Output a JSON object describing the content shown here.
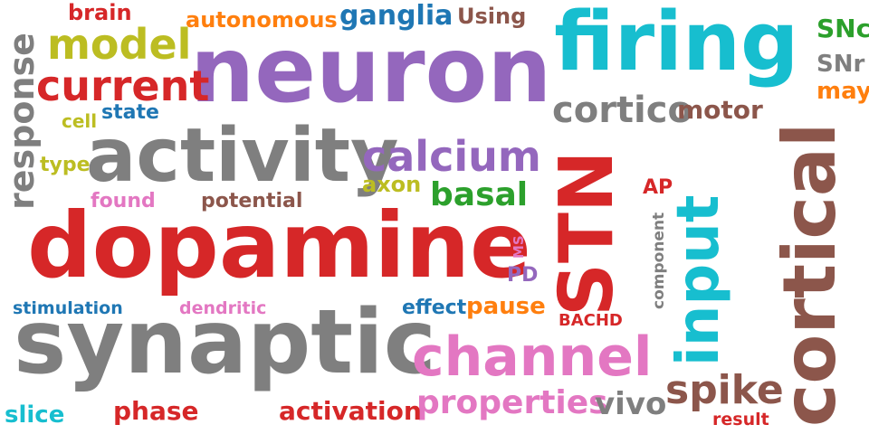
{
  "words": [
    {
      "text": "neuron",
      "color": "#9467bd"
    },
    {
      "text": "dopamine",
      "color": "#d62728"
    },
    {
      "text": "synaptic",
      "color": "#7f7f7f"
    },
    {
      "text": "activity",
      "color": "#7f7f7f"
    },
    {
      "text": "firing",
      "color": "#17becf"
    },
    {
      "text": "STN",
      "color": "#d62728"
    },
    {
      "text": "cortical",
      "color": "#8c564b"
    },
    {
      "text": "input",
      "color": "#17becf"
    },
    {
      "text": "channel",
      "color": "#e377c2"
    },
    {
      "text": "properties",
      "color": "#e377c2"
    },
    {
      "text": "calcium",
      "color": "#9467bd"
    },
    {
      "text": "cortico",
      "color": "#7f7f7f"
    },
    {
      "text": "current",
      "color": "#d62728"
    },
    {
      "text": "model",
      "color": "#bcbd22"
    },
    {
      "text": "response",
      "color": "#7f7f7f"
    },
    {
      "text": "ganglia",
      "color": "#1f77b4"
    },
    {
      "text": "autonomous",
      "color": "#ff7f0e"
    },
    {
      "text": "basal",
      "color": "#2ca02c"
    },
    {
      "text": "spike",
      "color": "#8c564b"
    },
    {
      "text": "brain",
      "color": "#d62728"
    },
    {
      "text": "Using",
      "color": "#8c564b"
    },
    {
      "text": "SNc",
      "color": "#2ca02c"
    },
    {
      "text": "SNr",
      "color": "#7f7f7f"
    },
    {
      "text": "may",
      "color": "#ff7f0e"
    },
    {
      "text": "motor",
      "color": "#8c564b"
    },
    {
      "text": "cell",
      "color": "#bcbd22"
    },
    {
      "text": "state",
      "color": "#1f77b4"
    },
    {
      "text": "type",
      "color": "#bcbd22"
    },
    {
      "text": "found",
      "color": "#e377c2"
    },
    {
      "text": "potential",
      "color": "#8c564b"
    },
    {
      "text": "axon",
      "color": "#bcbd22"
    },
    {
      "text": "AP",
      "color": "#d62728"
    },
    {
      "text": "component",
      "color": "#7f7f7f"
    },
    {
      "text": "MS",
      "color": "#e377c2"
    },
    {
      "text": "PD",
      "color": "#9467bd"
    },
    {
      "text": "stimulation",
      "color": "#1f77b4"
    },
    {
      "text": "dendritic",
      "color": "#e377c2"
    },
    {
      "text": "effect",
      "color": "#1f77b4"
    },
    {
      "text": "pause",
      "color": "#ff7f0e"
    },
    {
      "text": "BACHD",
      "color": "#d62728"
    },
    {
      "text": "vivo",
      "color": "#7f7f7f"
    },
    {
      "text": "slice",
      "color": "#17becf"
    },
    {
      "text": "phase",
      "color": "#d62728"
    },
    {
      "text": "activation",
      "color": "#d62728"
    },
    {
      "text": "result",
      "color": "#d62728"
    }
  ]
}
